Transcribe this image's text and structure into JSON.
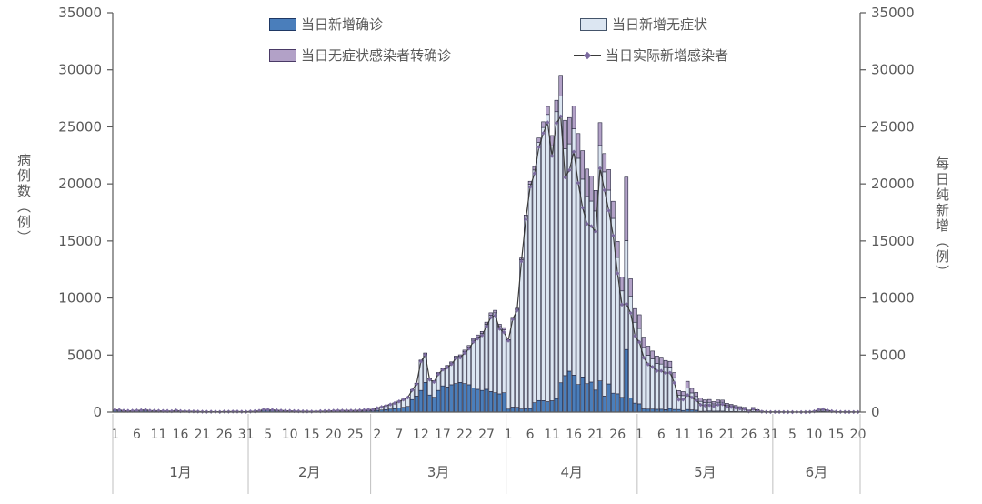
{
  "figure": {
    "background": "#ffffff",
    "text_color": "#595959"
  },
  "legend": {
    "items": [
      {
        "label": "当日新增确诊",
        "type": "box",
        "color": "#4a7ebb",
        "border": "#1f3864"
      },
      {
        "label": "当日新增无症状",
        "type": "box",
        "color": "#dce6f2",
        "border": "#44546a"
      },
      {
        "label": "当日无症状感染者转确诊",
        "type": "box",
        "color": "#b2a1c7",
        "border": "#4a3a66"
      },
      {
        "label": "当日实际新增感染者",
        "type": "line",
        "color": "#3a3a3a",
        "marker_color": "#7c6ba0"
      }
    ]
  },
  "axes": {
    "left": {
      "title": "病例数（例）",
      "ticks": [
        0,
        5000,
        10000,
        15000,
        20000,
        25000,
        30000,
        35000
      ],
      "range": [
        0,
        35000
      ]
    },
    "right": {
      "title": "每日纯新增（例）",
      "ticks": [
        0,
        5000,
        10000,
        15000,
        20000,
        25000,
        30000,
        35000
      ],
      "range": [
        0,
        35000
      ]
    },
    "x": {
      "months": [
        {
          "label": "1月",
          "days": 31,
          "tick_days": [
            1,
            6,
            11,
            16,
            21,
            26,
            31
          ]
        },
        {
          "label": "2月",
          "days": 28,
          "tick_days": [
            5,
            10,
            15,
            20,
            25
          ]
        },
        {
          "label": "3月",
          "days": 31,
          "tick_days": [
            2,
            7,
            12,
            17,
            22,
            27
          ]
        },
        {
          "label": "4月",
          "days": 30,
          "tick_days": [
            1,
            6,
            11,
            16,
            21,
            26
          ]
        },
        {
          "label": "5月",
          "days": 31,
          "tick_days": [
            1,
            6,
            11,
            16,
            21,
            26,
            31
          ]
        },
        {
          "label": "6月",
          "days": 20,
          "tick_days": [
            5,
            10,
            15,
            20
          ]
        }
      ]
    }
  },
  "chart_data": {
    "type": "bar",
    "combo": "stacked-bars-plus-line",
    "title": "",
    "xlabel": "",
    "ylabel_left": "病例数（例）",
    "ylabel_right": "每日纯新增（例）",
    "ylim": [
      0,
      35000
    ],
    "grid": false,
    "legend_position": "top-inside",
    "x_span": "每日，1月1日至6月20日",
    "series": [
      {
        "name": "当日新增确诊",
        "role": "bar-stack-1",
        "color": "#4a7ebb",
        "border": "#23233a",
        "values": [
          175,
          161,
          95,
          90,
          97,
          110,
          131,
          165,
          92,
          97,
          87,
          80,
          76,
          65,
          119,
          65,
          66,
          55,
          43,
          37,
          23,
          18,
          23,
          24,
          12,
          40,
          25,
          39,
          37,
          27,
          21,
          45,
          60,
          90,
          180,
          170,
          155,
          130,
          110,
          95,
          85,
          70,
          60,
          50,
          45,
          40,
          45,
          55,
          60,
          70,
          85,
          95,
          90,
          80,
          75,
          70,
          80,
          93,
          110,
          120,
          150,
          180,
          220,
          260,
          300,
          350,
          420,
          500,
          1100,
          1400,
          1900,
          2600,
          1500,
          1300,
          1900,
          2300,
          2200,
          2400,
          2500,
          2600,
          2500,
          2400,
          2100,
          2000,
          1900,
          2000,
          1800,
          1700,
          1600,
          1700,
          260,
          438,
          425,
          268,
          311,
          322,
          824,
          1015,
          1006,
          914,
          994,
          1189,
          2573,
          3200,
          3590,
          3238,
          2417,
          3084,
          2494,
          2634,
          1931,
          2736,
          1401,
          2472,
          1661,
          1606,
          1292,
          5487,
          1249,
          788,
          727,
          274,
          260,
          261,
          245,
          253,
          215,
          322,
          234,
          228,
          144,
          227,
          194,
          166,
          69,
          77,
          96,
          82,
          88,
          84,
          52,
          55,
          58,
          44,
          48,
          29,
          47,
          39,
          6,
          9,
          5,
          5,
          5,
          5,
          2,
          2,
          3,
          2,
          2,
          10,
          30,
          80,
          70,
          40,
          20,
          10,
          6,
          5,
          4,
          3,
          2
        ]
      },
      {
        "name": "当日新增无症状",
        "role": "bar-stack-2",
        "color": "#dce6f2",
        "border": "#23233a",
        "values": [
          30,
          25,
          28,
          30,
          30,
          35,
          38,
          40,
          35,
          30,
          28,
          25,
          25,
          22,
          30,
          25,
          25,
          22,
          20,
          20,
          18,
          15,
          15,
          15,
          12,
          15,
          15,
          18,
          15,
          12,
          12,
          15,
          18,
          25,
          40,
          45,
          40,
          35,
          30,
          28,
          25,
          22,
          20,
          18,
          16,
          15,
          18,
          25,
          30,
          35,
          40,
          45,
          50,
          55,
          60,
          65,
          76,
          90,
          110,
          100,
          200,
          280,
          350,
          420,
          500,
          600,
          700,
          800,
          850,
          1100,
          2600,
          2500,
          1400,
          1400,
          1500,
          1500,
          1800,
          1900,
          2300,
          2300,
          2800,
          3300,
          4200,
          4600,
          5000,
          5700,
          6700,
          7000,
          5900,
          5500,
          6051,
          7788,
          8581,
          13086,
          16766,
          19660,
          20398,
          22609,
          23937,
          25173,
          22348,
          25141,
          25146,
          19872,
          19923,
          21582,
          19831,
          17332,
          16407,
          15861,
          15698,
          20634,
          19657,
          16983,
          15319,
          11956,
          9330,
          9545,
          8932,
          7084,
          6606,
          5395,
          4722,
          4390,
          4024,
          3961,
          3760,
          3625,
          2780,
          1259,
          1305,
          1869,
          1487,
          1203,
          869,
          746,
          759,
          637,
          770,
          784,
          570,
          503,
          422,
          343,
          290,
          93,
          290,
          128,
          61,
          22,
          10,
          10,
          8,
          5,
          4,
          3,
          4,
          2,
          3,
          10,
          40,
          150,
          180,
          120,
          60,
          30,
          15,
          10,
          8,
          6,
          5
        ]
      },
      {
        "name": "当日无症状感染者转确诊",
        "role": "bar-stack-3",
        "color": "#b2a1c7",
        "border": "#23233a",
        "values": [
          10,
          8,
          8,
          9,
          10,
          10,
          12,
          12,
          10,
          9,
          8,
          8,
          7,
          6,
          8,
          6,
          6,
          5,
          5,
          4,
          4,
          3,
          3,
          3,
          3,
          4,
          3,
          4,
          4,
          3,
          3,
          4,
          4,
          6,
          10,
          10,
          9,
          8,
          7,
          6,
          6,
          5,
          4,
          4,
          3,
          3,
          3,
          4,
          5,
          5,
          6,
          7,
          7,
          6,
          6,
          5,
          6,
          7,
          8,
          5,
          6,
          8,
          10,
          12,
          15,
          18,
          20,
          25,
          30,
          40,
          60,
          80,
          60,
          60,
          70,
          80,
          90,
          100,
          110,
          120,
          130,
          140,
          150,
          160,
          170,
          180,
          200,
          220,
          200,
          200,
          50,
          80,
          100,
          150,
          200,
          250,
          300,
          400,
          500,
          700,
          900,
          1000,
          1800,
          2500,
          2300,
          2000,
          2166,
          2500,
          2400,
          2200,
          1800,
          2000,
          1600,
          1800,
          1500,
          1400,
          1200,
          5560,
          1500,
          1200,
          1200,
          900,
          800,
          700,
          650,
          600,
          550,
          500,
          450,
          400,
          350,
          600,
          400,
          350,
          300,
          250,
          250,
          200,
          200,
          180,
          150,
          120,
          100,
          90,
          80,
          60,
          70,
          50,
          30,
          15,
          8,
          3,
          2,
          2,
          1,
          1,
          1,
          1,
          1,
          2,
          5,
          10,
          15,
          10,
          6,
          4,
          2,
          1,
          1,
          1,
          1
        ]
      },
      {
        "name": "当日实际新增感染者",
        "role": "line",
        "color": "#3a3a3a",
        "marker_color": "#7c6ba0",
        "formula": "新增确诊 + 新增无症状 - 无症状转确诊"
      }
    ]
  }
}
